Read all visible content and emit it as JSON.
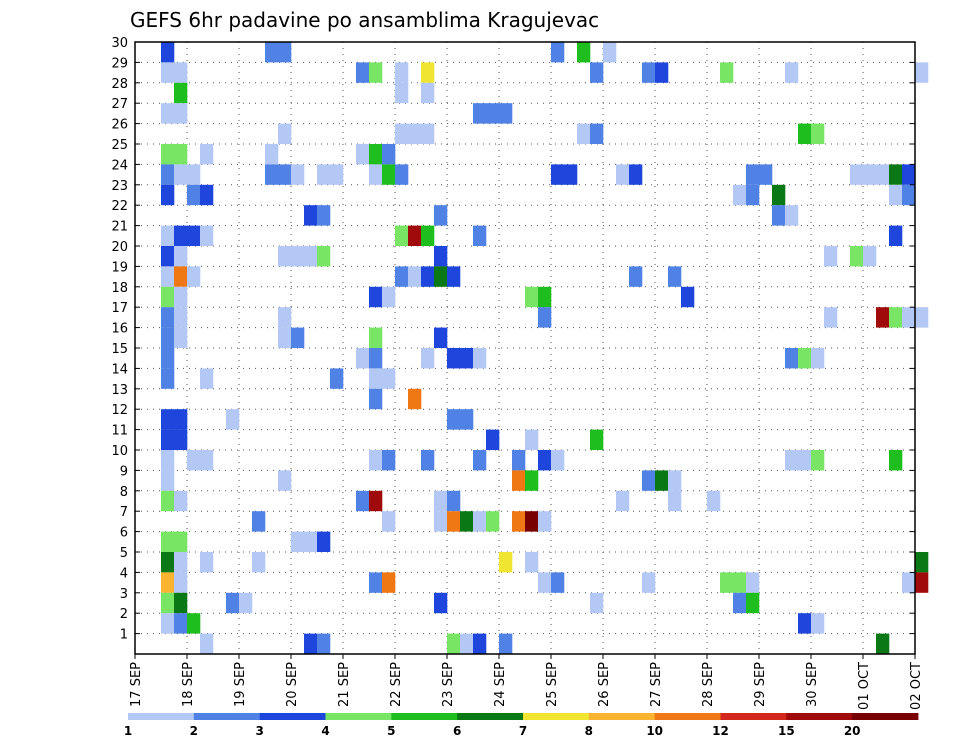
{
  "chart_data": {
    "type": "heatmap",
    "title": "GEFS 6hr padavine po ansamblima Kragujevac",
    "xlabel": "",
    "ylabel": "",
    "x_ticks": [
      "17 SEP",
      "18 SEP",
      "19 SEP",
      "20 SEP",
      "21 SEP",
      "22 SEP",
      "23 SEP",
      "24 SEP",
      "25 SEP",
      "26 SEP",
      "27 SEP",
      "28 SEP",
      "29 SEP",
      "30 SEP",
      "01 OCT",
      "02 OCT"
    ],
    "y_ticks": [
      1,
      2,
      3,
      4,
      5,
      6,
      7,
      8,
      9,
      10,
      11,
      12,
      13,
      14,
      15,
      16,
      17,
      18,
      19,
      20,
      21,
      22,
      23,
      24,
      25,
      26,
      27,
      28,
      29,
      30
    ],
    "x_range_days": [
      0,
      15
    ],
    "time_step_days": 0.25,
    "y_range": [
      0,
      30
    ],
    "grid": true,
    "legend": {
      "placement": "bottom",
      "labels": [
        "1",
        "2",
        "3",
        "4",
        "5",
        "6",
        "7",
        "8",
        "10",
        "12",
        "15",
        "20"
      ],
      "colors": [
        "#b4c8f5",
        "#5082e6",
        "#1e46dc",
        "#78e664",
        "#1ebe1e",
        "#0a7814",
        "#f0e632",
        "#fab432",
        "#f07814",
        "#d2281e",
        "#a00a0a",
        "#780000"
      ]
    },
    "cells": [
      [
        0.5,
        30,
        2
      ],
      [
        2.5,
        30,
        1
      ],
      [
        2.75,
        30,
        1
      ],
      [
        8,
        30,
        1
      ],
      [
        8.5,
        30,
        4
      ],
      [
        9,
        30,
        0
      ],
      [
        0.5,
        29,
        0
      ],
      [
        0.75,
        29,
        0
      ],
      [
        4.25,
        29,
        1
      ],
      [
        4.5,
        29,
        3
      ],
      [
        5,
        29,
        0
      ],
      [
        5.5,
        29,
        6
      ],
      [
        8.75,
        29,
        1
      ],
      [
        9.75,
        29,
        1
      ],
      [
        10,
        29,
        2
      ],
      [
        11.25,
        29,
        3
      ],
      [
        12.5,
        29,
        0
      ],
      [
        15,
        29,
        0
      ],
      [
        0.75,
        28,
        4
      ],
      [
        5,
        28,
        0
      ],
      [
        5.5,
        28,
        0
      ],
      [
        0.5,
        27,
        0
      ],
      [
        0.75,
        27,
        0
      ],
      [
        6.5,
        27,
        1
      ],
      [
        6.75,
        27,
        1
      ],
      [
        7,
        27,
        1
      ],
      [
        2.75,
        26,
        0
      ],
      [
        5,
        26,
        0
      ],
      [
        5.25,
        26,
        0
      ],
      [
        5.5,
        26,
        0
      ],
      [
        8.5,
        26,
        0
      ],
      [
        8.75,
        26,
        1
      ],
      [
        12.75,
        26,
        4
      ],
      [
        13,
        26,
        3
      ],
      [
        0.5,
        25,
        3
      ],
      [
        0.75,
        25,
        3
      ],
      [
        1.25,
        25,
        0
      ],
      [
        2.5,
        25,
        0
      ],
      [
        4.25,
        25,
        0
      ],
      [
        4.5,
        25,
        4
      ],
      [
        4.75,
        25,
        1
      ],
      [
        0.5,
        24,
        1
      ],
      [
        0.75,
        24,
        0
      ],
      [
        1,
        24,
        0
      ],
      [
        2.5,
        24,
        1
      ],
      [
        2.75,
        24,
        1
      ],
      [
        3,
        24,
        0
      ],
      [
        3.5,
        24,
        0
      ],
      [
        3.75,
        24,
        0
      ],
      [
        4.5,
        24,
        0
      ],
      [
        4.75,
        24,
        4
      ],
      [
        5,
        24,
        1
      ],
      [
        8,
        24,
        2
      ],
      [
        8.25,
        24,
        2
      ],
      [
        9.25,
        24,
        0
      ],
      [
        9.5,
        24,
        2
      ],
      [
        11.75,
        24,
        1
      ],
      [
        12,
        24,
        1
      ],
      [
        13.75,
        24,
        0
      ],
      [
        14,
        24,
        0
      ],
      [
        14.25,
        24,
        0
      ],
      [
        14.5,
        24,
        5
      ],
      [
        14.75,
        24,
        2
      ],
      [
        0.5,
        23,
        2
      ],
      [
        1,
        23,
        1
      ],
      [
        1.25,
        23,
        2
      ],
      [
        11.5,
        23,
        0
      ],
      [
        11.75,
        23,
        1
      ],
      [
        12.25,
        23,
        5
      ],
      [
        14.5,
        23,
        0
      ],
      [
        14.75,
        23,
        1
      ],
      [
        3.25,
        22,
        2
      ],
      [
        3.5,
        22,
        1
      ],
      [
        5.75,
        22,
        1
      ],
      [
        12.25,
        22,
        1
      ],
      [
        12.5,
        22,
        0
      ],
      [
        0.5,
        21,
        0
      ],
      [
        0.75,
        21,
        2
      ],
      [
        1,
        21,
        2
      ],
      [
        1.25,
        21,
        0
      ],
      [
        5,
        21,
        3
      ],
      [
        5.25,
        21,
        10
      ],
      [
        5.5,
        21,
        4
      ],
      [
        6.5,
        21,
        1
      ],
      [
        14.5,
        21,
        2
      ],
      [
        0.5,
        20,
        2
      ],
      [
        0.75,
        20,
        0
      ],
      [
        2.75,
        20,
        0
      ],
      [
        3,
        20,
        0
      ],
      [
        3.25,
        20,
        0
      ],
      [
        3.5,
        20,
        3
      ],
      [
        5.75,
        20,
        2
      ],
      [
        13.25,
        20,
        0
      ],
      [
        13.75,
        20,
        3
      ],
      [
        14,
        20,
        0
      ],
      [
        0.5,
        19,
        0
      ],
      [
        0.75,
        19,
        8
      ],
      [
        1,
        19,
        0
      ],
      [
        5,
        19,
        1
      ],
      [
        5.25,
        19,
        0
      ],
      [
        5.5,
        19,
        2
      ],
      [
        5.75,
        19,
        5
      ],
      [
        6,
        19,
        2
      ],
      [
        9.5,
        19,
        1
      ],
      [
        10.25,
        19,
        1
      ],
      [
        0.5,
        18,
        3
      ],
      [
        0.75,
        18,
        0
      ],
      [
        4.5,
        18,
        2
      ],
      [
        4.75,
        18,
        0
      ],
      [
        7.5,
        18,
        3
      ],
      [
        7.75,
        18,
        4
      ],
      [
        10.5,
        18,
        2
      ],
      [
        0.5,
        17,
        1
      ],
      [
        0.75,
        17,
        0
      ],
      [
        2.75,
        17,
        0
      ],
      [
        7.75,
        17,
        1
      ],
      [
        13.25,
        17,
        0
      ],
      [
        14.25,
        17,
        10
      ],
      [
        14.5,
        17,
        3
      ],
      [
        14.75,
        17,
        0
      ],
      [
        15,
        17,
        0
      ],
      [
        0.5,
        16,
        1
      ],
      [
        0.75,
        16,
        0
      ],
      [
        2.75,
        16,
        0
      ],
      [
        3,
        16,
        1
      ],
      [
        4.5,
        16,
        3
      ],
      [
        5.75,
        16,
        2
      ],
      [
        0.5,
        15,
        1
      ],
      [
        4.25,
        15,
        0
      ],
      [
        4.5,
        15,
        1
      ],
      [
        5.5,
        15,
        0
      ],
      [
        6,
        15,
        2
      ],
      [
        6.25,
        15,
        2
      ],
      [
        6.5,
        15,
        0
      ],
      [
        12.5,
        15,
        1
      ],
      [
        12.75,
        15,
        3
      ],
      [
        13,
        15,
        0
      ],
      [
        0.5,
        14,
        1
      ],
      [
        1.25,
        14,
        0
      ],
      [
        3.75,
        14,
        1
      ],
      [
        4.5,
        14,
        0
      ],
      [
        4.75,
        14,
        0
      ],
      [
        4.5,
        13,
        1
      ],
      [
        5.25,
        13,
        8
      ],
      [
        0.5,
        12,
        2
      ],
      [
        0.75,
        12,
        2
      ],
      [
        1.75,
        12,
        0
      ],
      [
        6,
        12,
        1
      ],
      [
        6.25,
        12,
        1
      ],
      [
        0.5,
        11,
        2
      ],
      [
        0.75,
        11,
        2
      ],
      [
        6.75,
        11,
        2
      ],
      [
        7.5,
        11,
        0
      ],
      [
        8.75,
        11,
        4
      ],
      [
        0.5,
        10,
        0
      ],
      [
        1,
        10,
        0
      ],
      [
        1.25,
        10,
        0
      ],
      [
        4.5,
        10,
        0
      ],
      [
        4.75,
        10,
        1
      ],
      [
        5.5,
        10,
        1
      ],
      [
        6.5,
        10,
        1
      ],
      [
        7.25,
        10,
        1
      ],
      [
        7.75,
        10,
        2
      ],
      [
        8,
        10,
        0
      ],
      [
        12.5,
        10,
        0
      ],
      [
        12.75,
        10,
        0
      ],
      [
        13,
        10,
        3
      ],
      [
        14.5,
        10,
        4
      ],
      [
        0.5,
        9,
        0
      ],
      [
        2.75,
        9,
        0
      ],
      [
        7.25,
        9,
        8
      ],
      [
        7.5,
        9,
        4
      ],
      [
        9.75,
        9,
        1
      ],
      [
        10,
        9,
        5
      ],
      [
        10.25,
        9,
        0
      ],
      [
        0.5,
        8,
        3
      ],
      [
        0.75,
        8,
        0
      ],
      [
        4.25,
        8,
        1
      ],
      [
        4.5,
        8,
        10
      ],
      [
        5.75,
        8,
        0
      ],
      [
        6,
        8,
        1
      ],
      [
        9.25,
        8,
        0
      ],
      [
        10.25,
        8,
        0
      ],
      [
        11,
        8,
        0
      ],
      [
        2.25,
        7,
        1
      ],
      [
        4.75,
        7,
        0
      ],
      [
        5.75,
        7,
        0
      ],
      [
        6,
        7,
        8
      ],
      [
        6.25,
        7,
        5
      ],
      [
        6.5,
        7,
        0
      ],
      [
        6.75,
        7,
        3
      ],
      [
        7.25,
        7,
        8
      ],
      [
        7.5,
        7,
        11
      ],
      [
        7.75,
        7,
        0
      ],
      [
        0.5,
        6,
        3
      ],
      [
        0.75,
        6,
        3
      ],
      [
        3,
        6,
        0
      ],
      [
        3.25,
        6,
        0
      ],
      [
        3.5,
        6,
        2
      ],
      [
        0.5,
        5,
        5
      ],
      [
        0.75,
        5,
        0
      ],
      [
        1.25,
        5,
        0
      ],
      [
        2.25,
        5,
        0
      ],
      [
        7,
        5,
        6
      ],
      [
        7.5,
        5,
        0
      ],
      [
        15,
        5,
        5
      ],
      [
        0.5,
        4,
        7
      ],
      [
        0.75,
        4,
        0
      ],
      [
        4.5,
        4,
        1
      ],
      [
        4.75,
        4,
        8
      ],
      [
        7.75,
        4,
        0
      ],
      [
        8,
        4,
        1
      ],
      [
        9.75,
        4,
        0
      ],
      [
        11.25,
        4,
        3
      ],
      [
        11.5,
        4,
        3
      ],
      [
        11.75,
        4,
        0
      ],
      [
        14.75,
        4,
        0
      ],
      [
        15,
        4,
        10
      ],
      [
        0.5,
        3,
        3
      ],
      [
        0.75,
        3,
        5
      ],
      [
        1.75,
        3,
        1
      ],
      [
        2,
        3,
        0
      ],
      [
        5.75,
        3,
        2
      ],
      [
        8.75,
        3,
        0
      ],
      [
        11.5,
        3,
        1
      ],
      [
        11.75,
        3,
        4
      ],
      [
        0.5,
        2,
        0
      ],
      [
        0.75,
        2,
        1
      ],
      [
        1,
        2,
        4
      ],
      [
        12.75,
        2,
        2
      ],
      [
        13,
        2,
        0
      ],
      [
        1.25,
        1,
        0
      ],
      [
        3.25,
        1,
        2
      ],
      [
        3.5,
        1,
        1
      ],
      [
        6,
        1,
        3
      ],
      [
        6.25,
        1,
        0
      ],
      [
        6.5,
        1,
        2
      ],
      [
        7,
        1,
        1
      ],
      [
        14.25,
        1,
        5
      ]
    ]
  }
}
